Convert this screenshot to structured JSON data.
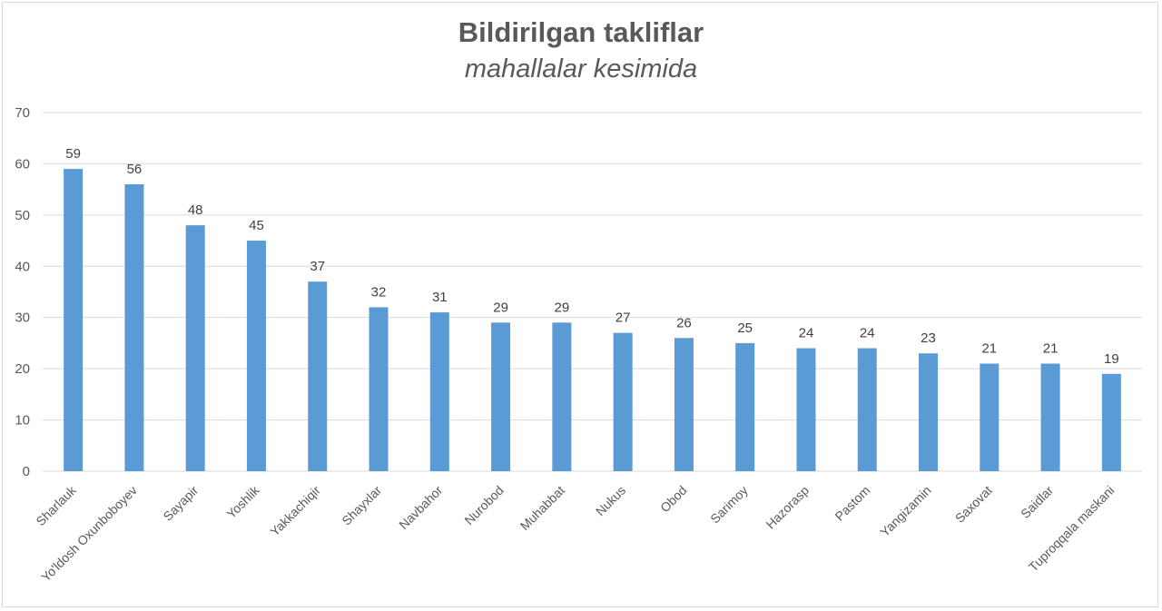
{
  "chart_data": {
    "type": "bar",
    "title": "Bildirilgan takliflar",
    "subtitle": "mahallalar kesimida",
    "xlabel": "",
    "ylabel": "",
    "ylim": [
      0,
      70
    ],
    "yticks": [
      0,
      10,
      20,
      30,
      40,
      50,
      60,
      70
    ],
    "grid": true,
    "legend": "none",
    "categories": [
      "Sharlauk",
      "Yo'ldosh Oxunboboyev",
      "Sayapir",
      "Yoshlik",
      "Yakkachiqir",
      "Shayxlar",
      "Navbahor",
      "Nurobod",
      "Muhabbat",
      "Nukus",
      "Obod",
      "Sarimoy",
      "Hazorasp",
      "Pastom",
      "Yangizamin",
      "Saxovat",
      "Saidlar",
      "Tuproqqala maskani"
    ],
    "values": [
      59,
      56,
      48,
      45,
      37,
      32,
      31,
      29,
      29,
      27,
      26,
      25,
      24,
      24,
      23,
      21,
      21,
      19
    ],
    "colors": {
      "bar": "#5B9BD5",
      "grid": "#d9d9d9",
      "text": "#595959"
    }
  }
}
